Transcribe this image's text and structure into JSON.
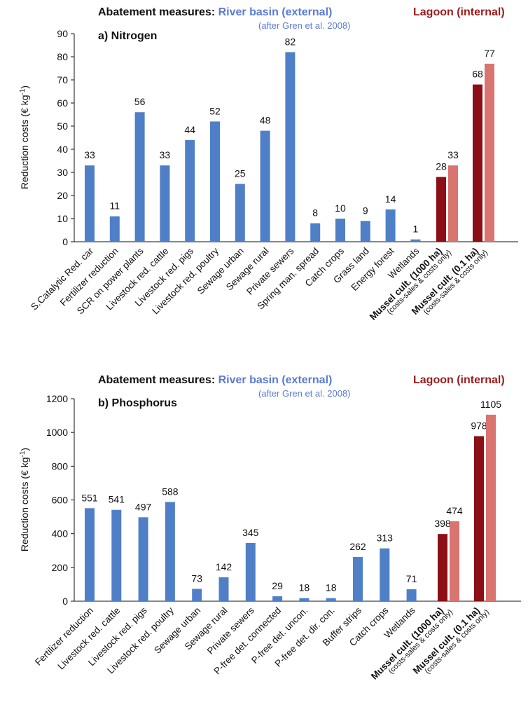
{
  "colors": {
    "river_basin": "#4f7fc7",
    "river_basin_text": "#5b7bd1",
    "lagoon_dark": "#8b0f14",
    "lagoon_light": "#d97470",
    "lagoon_text": "#9b1b1b",
    "axis": "#111111"
  },
  "chart_data": [
    {
      "type": "bar",
      "header": {
        "prefix": "Abatement measures:",
        "external": "River basin (external)",
        "external_note": "(after Gren et al. 2008)",
        "internal": "Lagoon (internal)"
      },
      "title": "a) Nitrogen",
      "ylabel": "Reduction costs (€ kg",
      "ylabel_sup": "-1",
      "ylabel_close": ")",
      "ylim": [
        0,
        90
      ],
      "yticks": [
        0,
        10,
        20,
        30,
        40,
        50,
        60,
        70,
        80,
        90
      ],
      "categories": [
        {
          "label": "S.Catalytic Red. car",
          "value": 33,
          "group": "external"
        },
        {
          "label": "Fertilizer reduction",
          "value": 11,
          "group": "external"
        },
        {
          "label": "SCR on power plants",
          "value": 56,
          "group": "external"
        },
        {
          "label": "Livestock red. cattle",
          "value": 33,
          "group": "external"
        },
        {
          "label": "Livestock red. pigs",
          "value": 44,
          "group": "external"
        },
        {
          "label": "Livestock red. poultry",
          "value": 52,
          "group": "external"
        },
        {
          "label": "Sewage urban",
          "value": 25,
          "group": "external"
        },
        {
          "label": "Sewage rural",
          "value": 48,
          "group": "external"
        },
        {
          "label": "Private sewers",
          "value": 82,
          "group": "external"
        },
        {
          "label": "Spring man. spread",
          "value": 8,
          "group": "external"
        },
        {
          "label": "Catch crops",
          "value": 10,
          "group": "external"
        },
        {
          "label": "Grass land",
          "value": 9,
          "group": "external"
        },
        {
          "label": "Energy forest",
          "value": 14,
          "group": "external"
        },
        {
          "label": "Wetlands",
          "value": 1,
          "group": "external"
        }
      ],
      "lagoon": [
        {
          "label": "Mussel cult. (1000 ha)",
          "note": "(costs-sales & costs only)",
          "values": [
            28,
            33
          ]
        },
        {
          "label": "Mussel cult. (0.1 ha)",
          "note": "(costs-sales & costs only)",
          "values": [
            68,
            77
          ]
        }
      ]
    },
    {
      "type": "bar",
      "header": {
        "prefix": "Abatement measures:",
        "external": "River basin (external)",
        "external_note": "(after Gren et al. 2008)",
        "internal": "Lagoon (internal)"
      },
      "title": "b) Phosphorus",
      "ylabel": "Reduction costs (€ kg",
      "ylabel_sup": "-1",
      "ylabel_close": ")",
      "ylim": [
        0,
        1200
      ],
      "yticks": [
        0,
        200,
        400,
        600,
        800,
        1000,
        1200
      ],
      "categories": [
        {
          "label": "Fertilizer reduction",
          "value": 551,
          "group": "external"
        },
        {
          "label": "Livestock red. cattle",
          "value": 541,
          "group": "external"
        },
        {
          "label": "Livestock red. pigs",
          "value": 497,
          "group": "external"
        },
        {
          "label": "Livestock red. poultry",
          "value": 588,
          "group": "external"
        },
        {
          "label": "Sewage urban",
          "value": 73,
          "group": "external"
        },
        {
          "label": "Sewage rural",
          "value": 142,
          "group": "external"
        },
        {
          "label": "Private sewers",
          "value": 345,
          "group": "external"
        },
        {
          "label": "P-free det. connected",
          "value": 29,
          "group": "external"
        },
        {
          "label": "P-free det. uncon.",
          "value": 18,
          "group": "external"
        },
        {
          "label": "P-free det. dir. con.",
          "value": 18,
          "group": "external"
        },
        {
          "label": "Buffer strips",
          "value": 262,
          "group": "external"
        },
        {
          "label": "Catch crops",
          "value": 313,
          "group": "external"
        },
        {
          "label": "Wetlands",
          "value": 71,
          "group": "external"
        }
      ],
      "lagoon": [
        {
          "label": "Mussel cult. (1000 ha)",
          "note": "(costs-sales & costs only)",
          "values": [
            398,
            474
          ]
        },
        {
          "label": "Mussel cult. (0.1 ha)",
          "note": "(costs-sales & costs only)",
          "values": [
            978,
            1105
          ]
        }
      ]
    }
  ]
}
